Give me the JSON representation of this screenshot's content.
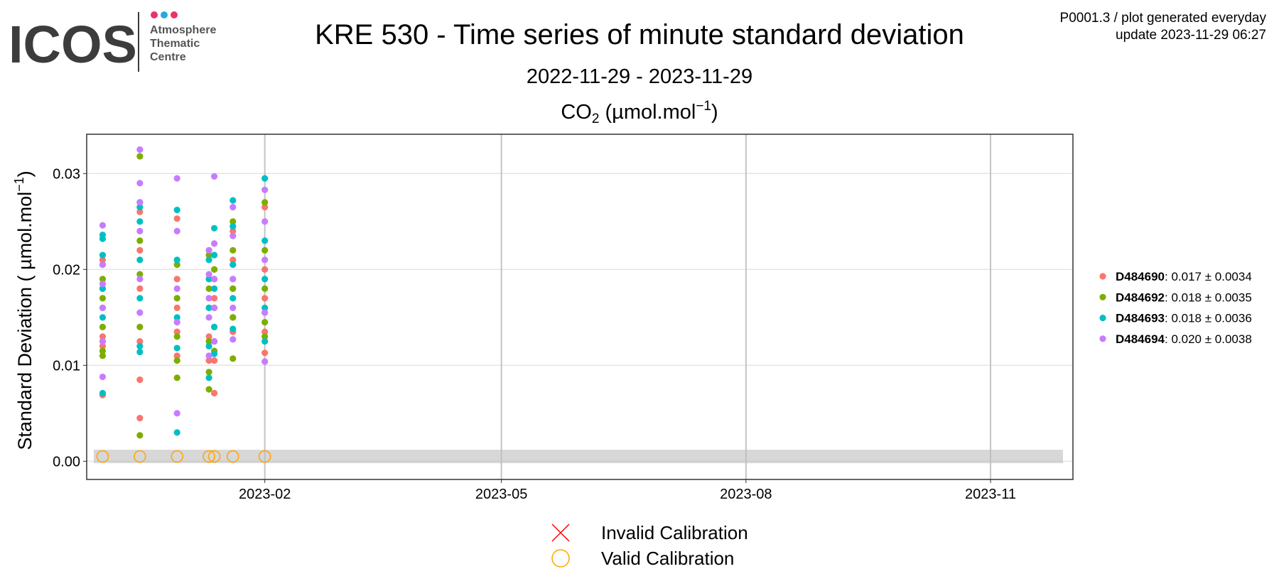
{
  "header": {
    "logo": "ICOS",
    "logo_lines": [
      "Atmosphere",
      "Thematic",
      "Centre"
    ],
    "info": [
      "P0001.3 / plot generated everyday",
      "update  2023-11-29 06:27"
    ]
  },
  "chart_data": {
    "type": "scatter",
    "title": "KRE 530 - Time series of minute standard deviation",
    "subtitle": "2022-11-29 - 2023-11-29",
    "panel_title": {
      "main": "CO",
      "sub": "2",
      "unit": " (µmol.mol",
      "sup": "−1",
      "end": ")"
    },
    "y_label": {
      "main": "Standard Deviation ( µmol.mol",
      "sup": "−1",
      "end": ")"
    },
    "xlim": [
      "2022-11-26",
      "2023-12-02"
    ],
    "xticks": [
      {
        "value": "2023-02-01",
        "label": "2023-02"
      },
      {
        "value": "2023-05-01",
        "label": "2023-05"
      },
      {
        "value": "2023-08-01",
        "label": "2023-08"
      },
      {
        "value": "2023-11-01",
        "label": "2023-11"
      }
    ],
    "ylim": [
      -0.0019,
      0.0341
    ],
    "yticks": [
      {
        "value": 0,
        "label": "0.00"
      },
      {
        "value": 0.01,
        "label": "0.01"
      },
      {
        "value": 0.02,
        "label": "0.02"
      },
      {
        "value": 0.03,
        "label": "0.03"
      }
    ],
    "grid": true,
    "legend": "right",
    "reference_band": [
      -0.0002,
      0.0012
    ],
    "series": [
      {
        "name": "D484690",
        "summary": ": 0.017 ± 0.0034",
        "color": "#f8766d",
        "x": [
          "2022-12-02",
          "2022-12-02",
          "2022-12-02",
          "2022-12-02",
          "2022-12-02",
          "2022-12-02",
          "2022-12-16",
          "2022-12-16",
          "2022-12-16",
          "2022-12-16",
          "2022-12-16",
          "2022-12-16",
          "2022-12-30",
          "2022-12-30",
          "2022-12-30",
          "2022-12-30",
          "2022-12-30",
          "2023-01-11",
          "2023-01-11",
          "2023-01-11",
          "2023-01-11",
          "2023-01-11",
          "2023-01-13",
          "2023-01-13",
          "2023-01-13",
          "2023-01-13",
          "2023-01-13",
          "2023-01-20",
          "2023-01-20",
          "2023-01-20",
          "2023-01-20",
          "2023-01-20",
          "2023-02-01",
          "2023-02-01",
          "2023-02-01",
          "2023-02-01",
          "2023-02-01"
        ],
        "values": [
          0.0069,
          0.012,
          0.013,
          0.016,
          0.018,
          0.021,
          0.0045,
          0.0085,
          0.0125,
          0.018,
          0.022,
          0.026,
          0.011,
          0.0135,
          0.016,
          0.019,
          0.0253,
          0.0105,
          0.013,
          0.016,
          0.019,
          0.022,
          0.0071,
          0.0105,
          0.014,
          0.017,
          0.02,
          0.0135,
          0.015,
          0.018,
          0.021,
          0.024,
          0.0113,
          0.0135,
          0.017,
          0.02,
          0.0265
        ]
      },
      {
        "name": "D484692",
        "summary": ": 0.018 ± 0.0035",
        "color": "#7cae00",
        "x": [
          "2022-12-02",
          "2022-12-02",
          "2022-12-02",
          "2022-12-02",
          "2022-12-02",
          "2022-12-02",
          "2022-12-16",
          "2022-12-16",
          "2022-12-16",
          "2022-12-16",
          "2022-12-16",
          "2022-12-16",
          "2022-12-30",
          "2022-12-30",
          "2022-12-30",
          "2022-12-30",
          "2022-12-30",
          "2023-01-11",
          "2023-01-11",
          "2023-01-11",
          "2023-01-11",
          "2023-01-11",
          "2023-01-13",
          "2023-01-13",
          "2023-01-13",
          "2023-01-13",
          "2023-01-13",
          "2023-01-20",
          "2023-01-20",
          "2023-01-20",
          "2023-01-20",
          "2023-01-20",
          "2023-02-01",
          "2023-02-01",
          "2023-02-01",
          "2023-02-01",
          "2023-02-01"
        ],
        "values": [
          0.011,
          0.0115,
          0.014,
          0.017,
          0.019,
          0.0205,
          0.0027,
          0.014,
          0.0195,
          0.023,
          0.027,
          0.0318,
          0.0087,
          0.0105,
          0.013,
          0.017,
          0.0205,
          0.0075,
          0.0093,
          0.0125,
          0.018,
          0.0215,
          0.0115,
          0.0125,
          0.016,
          0.019,
          0.02,
          0.0107,
          0.015,
          0.018,
          0.022,
          0.025,
          0.013,
          0.0145,
          0.018,
          0.022,
          0.027
        ]
      },
      {
        "name": "D484693",
        "summary": ": 0.018 ± 0.0036",
        "color": "#00bfc4",
        "x": [
          "2022-12-02",
          "2022-12-02",
          "2022-12-02",
          "2022-12-02",
          "2022-12-02",
          "2022-12-02",
          "2022-12-16",
          "2022-12-16",
          "2022-12-16",
          "2022-12-16",
          "2022-12-16",
          "2022-12-16",
          "2022-12-30",
          "2022-12-30",
          "2022-12-30",
          "2022-12-30",
          "2022-12-30",
          "2023-01-11",
          "2023-01-11",
          "2023-01-11",
          "2023-01-11",
          "2023-01-11",
          "2023-01-13",
          "2023-01-13",
          "2023-01-13",
          "2023-01-13",
          "2023-01-13",
          "2023-01-20",
          "2023-01-20",
          "2023-01-20",
          "2023-01-20",
          "2023-01-20",
          "2023-02-01",
          "2023-02-01",
          "2023-02-01",
          "2023-02-01",
          "2023-02-01"
        ],
        "values": [
          0.0071,
          0.015,
          0.018,
          0.0215,
          0.0232,
          0.0236,
          0.0114,
          0.012,
          0.017,
          0.021,
          0.025,
          0.0265,
          0.003,
          0.0118,
          0.015,
          0.021,
          0.0262,
          0.0087,
          0.012,
          0.016,
          0.019,
          0.021,
          0.0112,
          0.014,
          0.018,
          0.0215,
          0.0243,
          0.0138,
          0.017,
          0.0205,
          0.0245,
          0.0272,
          0.0125,
          0.016,
          0.019,
          0.023,
          0.0295
        ]
      },
      {
        "name": "D484694",
        "summary": ": 0.020 ± 0.0038",
        "color": "#c77cff",
        "x": [
          "2022-12-02",
          "2022-12-02",
          "2022-12-02",
          "2022-12-02",
          "2022-12-02",
          "2022-12-02",
          "2022-12-16",
          "2022-12-16",
          "2022-12-16",
          "2022-12-16",
          "2022-12-16",
          "2022-12-16",
          "2022-12-30",
          "2022-12-30",
          "2022-12-30",
          "2022-12-30",
          "2022-12-30",
          "2023-01-11",
          "2023-01-11",
          "2023-01-11",
          "2023-01-11",
          "2023-01-11",
          "2023-01-13",
          "2023-01-13",
          "2023-01-13",
          "2023-01-13",
          "2023-01-13",
          "2023-01-20",
          "2023-01-20",
          "2023-01-20",
          "2023-01-20",
          "2023-01-20",
          "2023-02-01",
          "2023-02-01",
          "2023-02-01",
          "2023-02-01",
          "2023-02-01"
        ],
        "values": [
          0.0088,
          0.0125,
          0.016,
          0.0185,
          0.0205,
          0.0246,
          0.0155,
          0.019,
          0.024,
          0.027,
          0.029,
          0.0325,
          0.005,
          0.0145,
          0.018,
          0.024,
          0.0295,
          0.011,
          0.015,
          0.017,
          0.0195,
          0.022,
          0.0125,
          0.016,
          0.019,
          0.0227,
          0.0297,
          0.0127,
          0.016,
          0.019,
          0.0235,
          0.0265,
          0.0104,
          0.0155,
          0.021,
          0.025,
          0.0283
        ]
      }
    ],
    "calibrations": [
      {
        "name": "Invalid Calibration",
        "marker": "x",
        "color": "#ff0000",
        "x": [],
        "values": []
      },
      {
        "name": "Valid Calibration",
        "marker": "circle",
        "color": "#ffa500",
        "x": [
          "2022-12-02",
          "2022-12-16",
          "2022-12-30",
          "2023-01-11",
          "2023-01-13",
          "2023-01-20",
          "2023-02-01"
        ],
        "values": [
          0.0005,
          0.0005,
          0.0005,
          0.0005,
          0.0005,
          0.0005,
          0.0005
        ]
      }
    ]
  }
}
